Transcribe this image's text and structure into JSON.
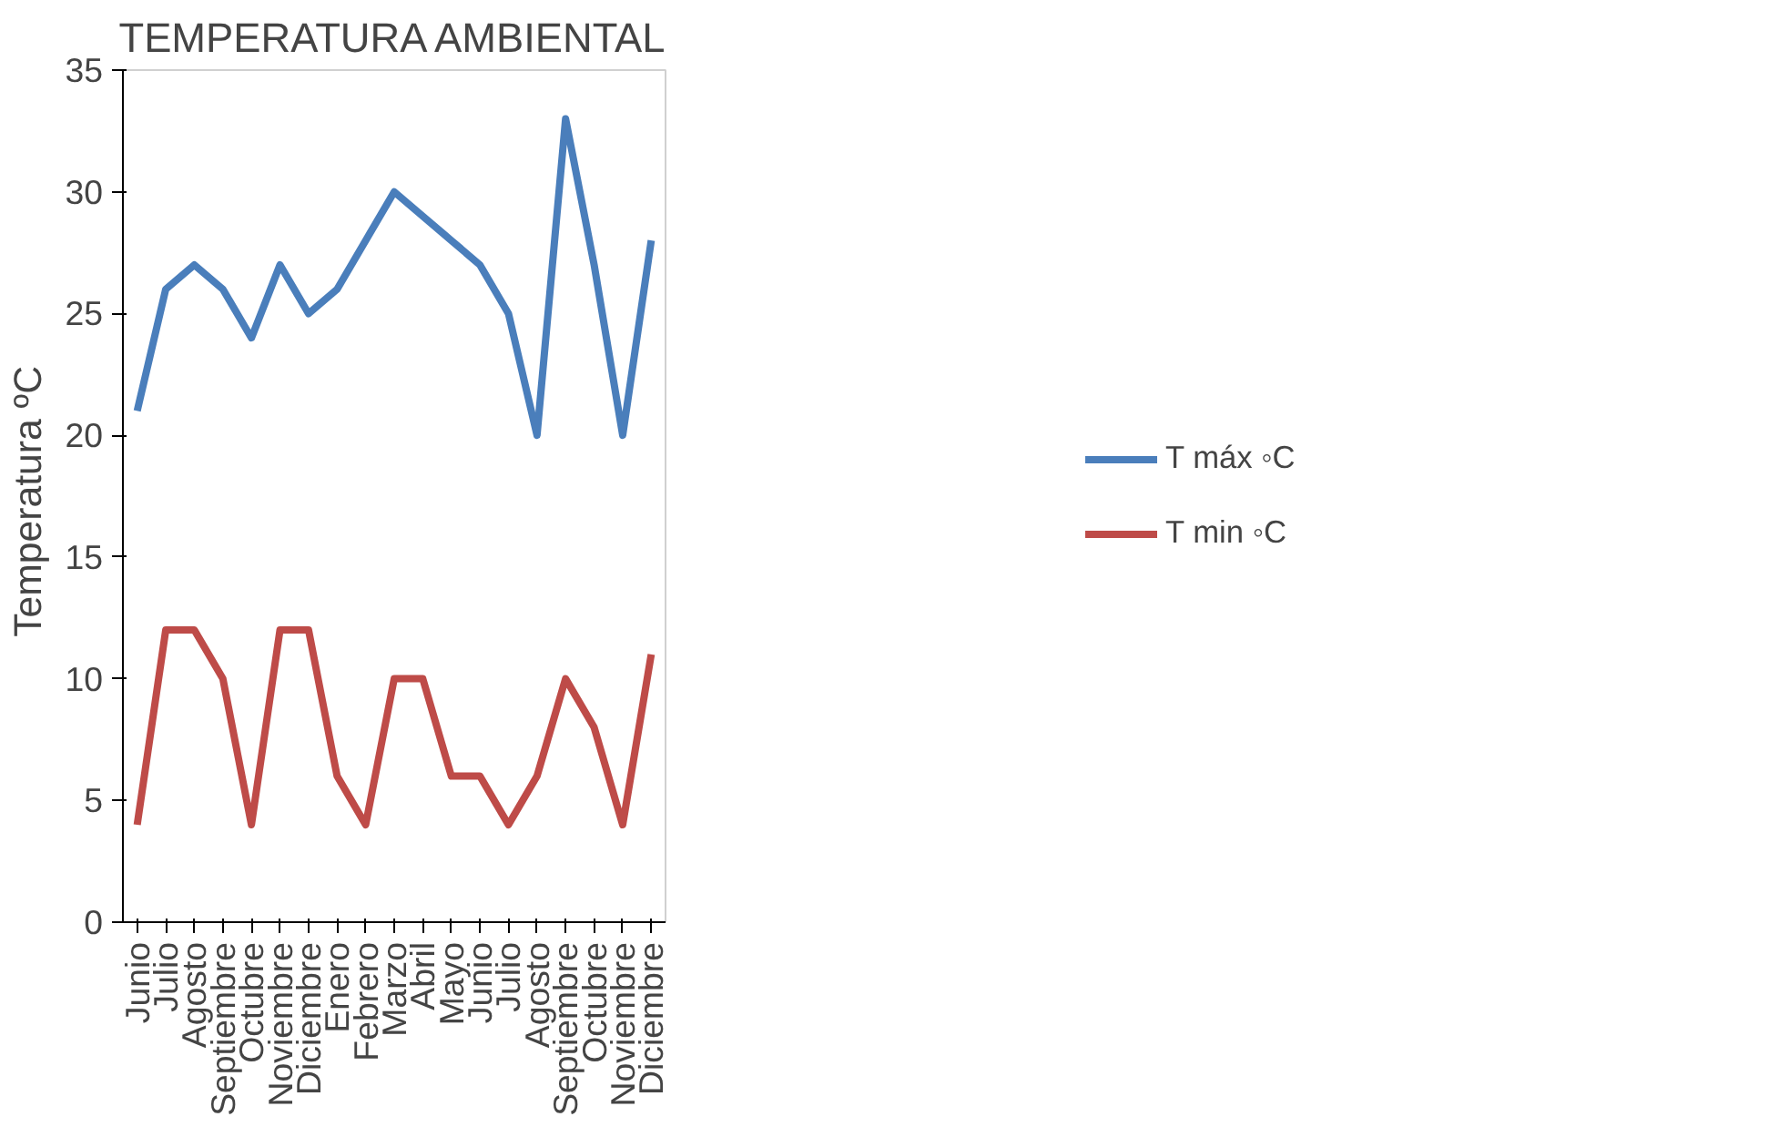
{
  "chart_data": {
    "type": "line",
    "title": "TEMPERATURA AMBIENTAL",
    "ylabel": "Temperatura  ºC",
    "categories": [
      "Junio",
      "Julio",
      "Agosto",
      "Septiembre",
      "Octubre",
      "Noviembre",
      "Diciembre",
      "Enero",
      "Febrero",
      "Marzo",
      "Abril",
      "Mayo",
      "Junio",
      "Julio",
      "Agosto",
      "Septiembre",
      "Octubre",
      "Noviembre",
      "Diciembre"
    ],
    "series": [
      {
        "name": "T máx ◦C",
        "color": "#4a7ebb",
        "values": [
          21,
          26,
          27,
          26,
          24,
          27,
          25,
          26,
          28,
          30,
          29,
          28,
          27,
          25,
          20,
          33,
          27,
          20,
          28
        ]
      },
      {
        "name": "T min ◦C",
        "color": "#be4b48",
        "values": [
          4,
          12,
          12,
          10,
          4,
          12,
          12,
          6,
          4,
          10,
          10,
          6,
          6,
          4,
          6,
          10,
          8,
          4,
          11
        ]
      }
    ],
    "ylim": [
      0,
      35
    ],
    "yticks": [
      0,
      5,
      10,
      15,
      20,
      25,
      30,
      35
    ],
    "grid": false,
    "legend": "right",
    "marker": "none",
    "line_style": "solid"
  }
}
